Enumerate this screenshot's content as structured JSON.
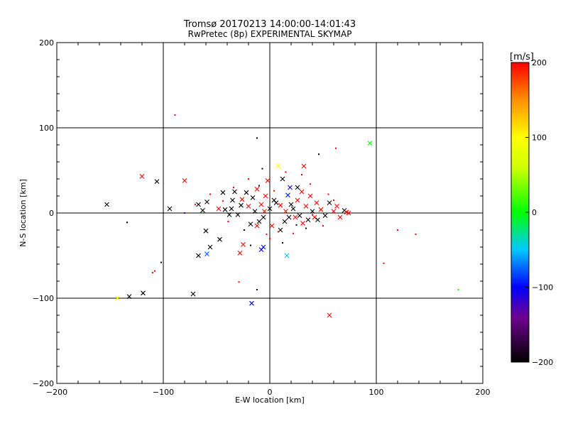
{
  "chart_data": {
    "type": "scatter",
    "title": "Tromsø 20170213 14:00:00-14:01:43",
    "subtitle": "RwPretec (8p) EXPERIMENTAL SKYMAP",
    "xlabel": "E-W location [km]",
    "ylabel": "N-S location [km]",
    "xlim": [
      -200,
      200
    ],
    "ylim": [
      -200,
      200
    ],
    "x_ticks": [
      -200,
      -100,
      0,
      100,
      200
    ],
    "y_ticks": [
      -200,
      -100,
      0,
      100,
      200
    ],
    "x_tick_labels": [
      "−200",
      "−100",
      "0",
      "100",
      "200"
    ],
    "y_tick_labels": [
      "−200",
      "−100",
      "0",
      "100",
      "200"
    ],
    "grid": true,
    "colorbar": {
      "title": "[m/s]",
      "min": -200,
      "max": 200,
      "ticks": [
        200,
        100,
        0,
        -100,
        -200
      ],
      "tick_labels": [
        "200",
        "100",
        "0",
        "−100",
        "−200"
      ],
      "colormap": [
        {
          "value": -200,
          "color": "#000000"
        },
        {
          "value": -140,
          "color": "#700090"
        },
        {
          "value": -100,
          "color": "#0000ff"
        },
        {
          "value": -50,
          "color": "#00c8ff"
        },
        {
          "value": 0,
          "color": "#00ff00"
        },
        {
          "value": 60,
          "color": "#d0ff00"
        },
        {
          "value": 100,
          "color": "#ffff00"
        },
        {
          "value": 150,
          "color": "#ff9000"
        },
        {
          "value": 200,
          "color": "#ff0000"
        }
      ]
    },
    "series": [
      {
        "name": "large markers (x)",
        "marker": "x",
        "points": [
          {
            "x": -153,
            "y": 10,
            "v": -200
          },
          {
            "x": -132,
            "y": -98,
            "v": -200
          },
          {
            "x": -119,
            "y": -94,
            "v": -200
          },
          {
            "x": -120,
            "y": 43,
            "v": 200
          },
          {
            "x": -106,
            "y": 37,
            "v": -200
          },
          {
            "x": -94,
            "y": 5,
            "v": -200
          },
          {
            "x": -80,
            "y": 38,
            "v": 200
          },
          {
            "x": -72,
            "y": -95,
            "v": -200
          },
          {
            "x": -67,
            "y": 10,
            "v": -200
          },
          {
            "x": -63,
            "y": 3,
            "v": -200
          },
          {
            "x": -60,
            "y": -21,
            "v": -200
          },
          {
            "x": -59,
            "y": 13,
            "v": -200
          },
          {
            "x": -56,
            "y": -40,
            "v": -200
          },
          {
            "x": -59,
            "y": -48,
            "v": -80
          },
          {
            "x": -67,
            "y": -50,
            "v": -200
          },
          {
            "x": -47,
            "y": -31,
            "v": -200
          },
          {
            "x": -48,
            "y": 5,
            "v": 200
          },
          {
            "x": -44,
            "y": 24,
            "v": -200
          },
          {
            "x": -42,
            "y": 4,
            "v": -200
          },
          {
            "x": -38,
            "y": -2,
            "v": -200
          },
          {
            "x": -35,
            "y": 15,
            "v": -200
          },
          {
            "x": -33,
            "y": 25,
            "v": -200
          },
          {
            "x": -30,
            "y": -2,
            "v": -200
          },
          {
            "x": -27,
            "y": 9,
            "v": -200
          },
          {
            "x": -28,
            "y": -47,
            "v": 200
          },
          {
            "x": -25,
            "y": -37,
            "v": 200
          },
          {
            "x": -22,
            "y": 24,
            "v": -200
          },
          {
            "x": -20,
            "y": 8,
            "v": 200
          },
          {
            "x": -18,
            "y": -13,
            "v": -200
          },
          {
            "x": -16,
            "y": 18,
            "v": -200
          },
          {
            "x": -14,
            "y": 2,
            "v": -200
          },
          {
            "x": -12,
            "y": 28,
            "v": 200
          },
          {
            "x": -10,
            "y": -10,
            "v": -200
          },
          {
            "x": -8,
            "y": 10,
            "v": 200
          },
          {
            "x": -6,
            "y": -5,
            "v": -200
          },
          {
            "x": -4,
            "y": 20,
            "v": 200
          },
          {
            "x": -2,
            "y": 38,
            "v": 200
          },
          {
            "x": 0,
            "y": 5,
            "v": -200
          },
          {
            "x": 2,
            "y": -15,
            "v": 200
          },
          {
            "x": 4,
            "y": 15,
            "v": -200
          },
          {
            "x": 8,
            "y": 55,
            "v": 100
          },
          {
            "x": 10,
            "y": 9,
            "v": 200
          },
          {
            "x": 12,
            "y": 40,
            "v": -200
          },
          {
            "x": 14,
            "y": -10,
            "v": -200
          },
          {
            "x": 15,
            "y": 2,
            "v": 200
          },
          {
            "x": 17,
            "y": 21,
            "v": -90
          },
          {
            "x": 16,
            "y": -50,
            "v": -50
          },
          {
            "x": 19,
            "y": 30,
            "v": -100
          },
          {
            "x": 22,
            "y": 5,
            "v": -200
          },
          {
            "x": 24,
            "y": -5,
            "v": 200
          },
          {
            "x": 26,
            "y": 15,
            "v": 200
          },
          {
            "x": 28,
            "y": -3,
            "v": -200
          },
          {
            "x": 30,
            "y": 25,
            "v": 200
          },
          {
            "x": 32,
            "y": 55,
            "v": 200
          },
          {
            "x": 34,
            "y": 8,
            "v": 200
          },
          {
            "x": 36,
            "y": -8,
            "v": -200
          },
          {
            "x": 38,
            "y": 20,
            "v": 200
          },
          {
            "x": 40,
            "y": 2,
            "v": -200
          },
          {
            "x": 42,
            "y": -5,
            "v": 200
          },
          {
            "x": 45,
            "y": -8,
            "v": -200
          },
          {
            "x": 48,
            "y": 4,
            "v": 200
          },
          {
            "x": 52,
            "y": -3,
            "v": -200
          },
          {
            "x": 56,
            "y": 12,
            "v": -200
          },
          {
            "x": 60,
            "y": 2,
            "v": 200
          },
          {
            "x": 63,
            "y": 8,
            "v": 200
          },
          {
            "x": 66,
            "y": -5,
            "v": 200
          },
          {
            "x": 70,
            "y": 3,
            "v": -200
          },
          {
            "x": 72,
            "y": 1,
            "v": 200
          },
          {
            "x": 74,
            "y": 0,
            "v": 200
          },
          {
            "x": 94,
            "y": 82,
            "v": 0
          },
          {
            "x": -143,
            "y": -100,
            "v": 100
          },
          {
            "x": 56,
            "y": -120,
            "v": 200
          },
          {
            "x": -17,
            "y": -106,
            "v": -100
          },
          {
            "x": -8,
            "y": -43,
            "v": -100
          },
          {
            "x": -6,
            "y": -40,
            "v": -100
          },
          {
            "x": -5,
            "y": 2,
            "v": 200
          },
          {
            "x": 6,
            "y": 12,
            "v": -200
          },
          {
            "x": -26,
            "y": 16,
            "v": 200
          },
          {
            "x": 20,
            "y": 10,
            "v": -200
          },
          {
            "x": 31,
            "y": -12,
            "v": 200
          },
          {
            "x": -36,
            "y": 5,
            "v": -200
          },
          {
            "x": 10,
            "y": -20,
            "v": -200
          },
          {
            "x": 26,
            "y": 30,
            "v": -200
          },
          {
            "x": 44,
            "y": 12,
            "v": 200
          },
          {
            "x": -12,
            "y": -15,
            "v": 200
          },
          {
            "x": 18,
            "y": -5,
            "v": -200
          }
        ]
      },
      {
        "name": "small markers (dot)",
        "marker": "dot",
        "points": [
          {
            "x": -89,
            "y": 115,
            "v": 200
          },
          {
            "x": -12,
            "y": 88,
            "v": -200
          },
          {
            "x": 46,
            "y": 69,
            "v": -200
          },
          {
            "x": 62,
            "y": 76,
            "v": 200
          },
          {
            "x": 120,
            "y": -20,
            "v": 200
          },
          {
            "x": 137,
            "y": -25,
            "v": 200
          },
          {
            "x": 107,
            "y": -59,
            "v": 200
          },
          {
            "x": 177,
            "y": -90,
            "v": 0
          },
          {
            "x": -102,
            "y": -58,
            "v": -200
          },
          {
            "x": -108,
            "y": -68,
            "v": 200
          },
          {
            "x": -110,
            "y": -70,
            "v": 200
          },
          {
            "x": -134,
            "y": -11,
            "v": -200
          },
          {
            "x": -80,
            "y": 0,
            "v": -130
          },
          {
            "x": -12,
            "y": -90,
            "v": -200
          },
          {
            "x": -29,
            "y": -81,
            "v": 200
          },
          {
            "x": -56,
            "y": 22,
            "v": 200
          },
          {
            "x": -70,
            "y": 10,
            "v": 200
          },
          {
            "x": -39,
            "y": -10,
            "v": 200
          },
          {
            "x": -18,
            "y": -38,
            "v": -200
          },
          {
            "x": -3,
            "y": -25,
            "v": 200
          },
          {
            "x": 8,
            "y": -22,
            "v": 200
          },
          {
            "x": 25,
            "y": -14,
            "v": -200
          },
          {
            "x": 34,
            "y": -18,
            "v": -200
          },
          {
            "x": 50,
            "y": -15,
            "v": 200
          },
          {
            "x": 55,
            "y": 22,
            "v": 200
          },
          {
            "x": 30,
            "y": 45,
            "v": 200
          },
          {
            "x": -20,
            "y": 40,
            "v": 200
          },
          {
            "x": -34,
            "y": 30,
            "v": 200
          },
          {
            "x": -7,
            "y": 52,
            "v": -200
          },
          {
            "x": 15,
            "y": 48,
            "v": 200
          },
          {
            "x": 38,
            "y": 34,
            "v": 200
          },
          {
            "x": 60,
            "y": 15,
            "v": 200
          },
          {
            "x": -24,
            "y": -20,
            "v": -200
          },
          {
            "x": 0,
            "y": -30,
            "v": 200
          },
          {
            "x": 12,
            "y": -35,
            "v": -200
          },
          {
            "x": -44,
            "y": 14,
            "v": 200
          },
          {
            "x": 4,
            "y": 26,
            "v": 200
          },
          {
            "x": 22,
            "y": -24,
            "v": 200
          },
          {
            "x": -10,
            "y": 32,
            "v": -200
          },
          {
            "x": 40,
            "y": -2,
            "v": 200
          }
        ]
      }
    ]
  }
}
